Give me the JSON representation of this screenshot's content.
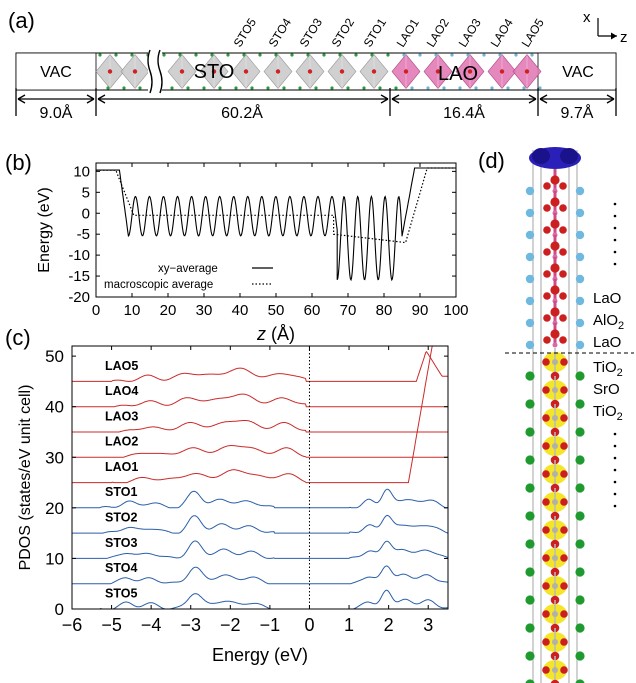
{
  "panels": {
    "a": {
      "label": "(a)",
      "regions": [
        "VAC",
        "STO",
        "LAO",
        "VAC"
      ],
      "layer_labels": [
        "STO5",
        "STO4",
        "STO3",
        "STO2",
        "STO1",
        "LAO1",
        "LAO2",
        "LAO3",
        "LAO4",
        "LAO5"
      ],
      "thicknesses": [
        "9.0Å",
        "60.2Å",
        "16.4Å",
        "9.7Å"
      ],
      "axis_x": "x",
      "axis_z": "z",
      "colors": {
        "sto_octahedra": "#c8c8c8",
        "lao_octahedra": "#e27bb6"
      }
    },
    "b": {
      "label": "(b)"
    },
    "c": {
      "label": "(c)"
    },
    "d": {
      "label": "(d)",
      "layer_labels": [
        "LaO",
        "AlO2",
        "LaO",
        "TiO2",
        "SrO",
        "TiO2"
      ]
    }
  },
  "chart_data": [
    {
      "panel": "b",
      "type": "line",
      "xlabel": "z (Å)",
      "ylabel": "Energy (eV)",
      "xlim": [
        0,
        100
      ],
      "ylim": [
        -20,
        12
      ],
      "xticks": [
        0,
        10,
        20,
        30,
        40,
        50,
        60,
        70,
        80,
        90,
        100
      ],
      "yticks": [
        -20,
        -15,
        -10,
        -5,
        0,
        5,
        10
      ],
      "legend_position": "bottom-center",
      "series": [
        {
          "name": "xy−average",
          "style": "solid",
          "segments": [
            {
              "kind": "flat",
              "x": [
                0,
                6.5
              ],
              "y": 10.3
            },
            {
              "kind": "ramp",
              "x": [
                6.5,
                9.0
              ],
              "y": [
                10.3,
                -5.4
              ]
            },
            {
              "kind": "oscillation",
              "x": [
                9.0,
                67.0
              ],
              "period": 3.9,
              "max": 4.0,
              "min": -5.4
            },
            {
              "kind": "oscillation",
              "x": [
                67.0,
                85.0
              ],
              "period": 3.8,
              "max": 4.0,
              "min": -15.9
            },
            {
              "kind": "ramp",
              "x": [
                85.0,
                88.5
              ],
              "y": [
                -5.5,
                10.8
              ]
            },
            {
              "kind": "flat",
              "x": [
                88.5,
                100
              ],
              "y": 10.8
            }
          ]
        },
        {
          "name": "macroscopic average",
          "style": "dotted",
          "segments": [
            {
              "kind": "flat",
              "x": [
                0,
                5.5
              ],
              "y": 10.3
            },
            {
              "kind": "ramp",
              "x": [
                5.5,
                10.5
              ],
              "y": [
                10.3,
                -0.5
              ]
            },
            {
              "kind": "flat",
              "x": [
                10.5,
                66.0
              ],
              "y": -0.5
            },
            {
              "kind": "ramp",
              "x": [
                66.0,
                86.0
              ],
              "y": [
                -5.0,
                -7.0
              ]
            },
            {
              "kind": "ramp",
              "x": [
                86.0,
                92.0
              ],
              "y": [
                -7.0,
                10.8
              ]
            },
            {
              "kind": "flat",
              "x": [
                92.0,
                100
              ],
              "y": 10.8
            }
          ]
        }
      ]
    },
    {
      "panel": "c",
      "type": "line",
      "xlabel": "Energy (eV)",
      "ylabel": "PDOS (states/eV unit cell)",
      "xlim": [
        -6,
        3.5
      ],
      "ylim": [
        0,
        52
      ],
      "xticks": [
        -6,
        -5,
        -4,
        -3,
        -2,
        -1,
        0,
        1,
        2,
        3
      ],
      "yticks": [
        0,
        10,
        20,
        30,
        40,
        50
      ],
      "fermi_level": 0,
      "colors": {
        "LAO": "#cc2a2a",
        "STO": "#2a5fa8"
      },
      "series": [
        {
          "name": "STO5",
          "offset": 0,
          "color_group": "STO"
        },
        {
          "name": "STO4",
          "offset": 5,
          "color_group": "STO"
        },
        {
          "name": "STO3",
          "offset": 10,
          "color_group": "STO"
        },
        {
          "name": "STO2",
          "offset": 15,
          "color_group": "STO"
        },
        {
          "name": "STO1",
          "offset": 20,
          "color_group": "STO"
        },
        {
          "name": "LAO1",
          "offset": 25,
          "color_group": "LAO"
        },
        {
          "name": "LAO2",
          "offset": 30,
          "color_group": "LAO"
        },
        {
          "name": "LAO3",
          "offset": 35,
          "color_group": "LAO"
        },
        {
          "name": "LAO4",
          "offset": 40,
          "color_group": "LAO"
        },
        {
          "name": "LAO5",
          "offset": 45,
          "color_group": "LAO"
        }
      ]
    }
  ]
}
